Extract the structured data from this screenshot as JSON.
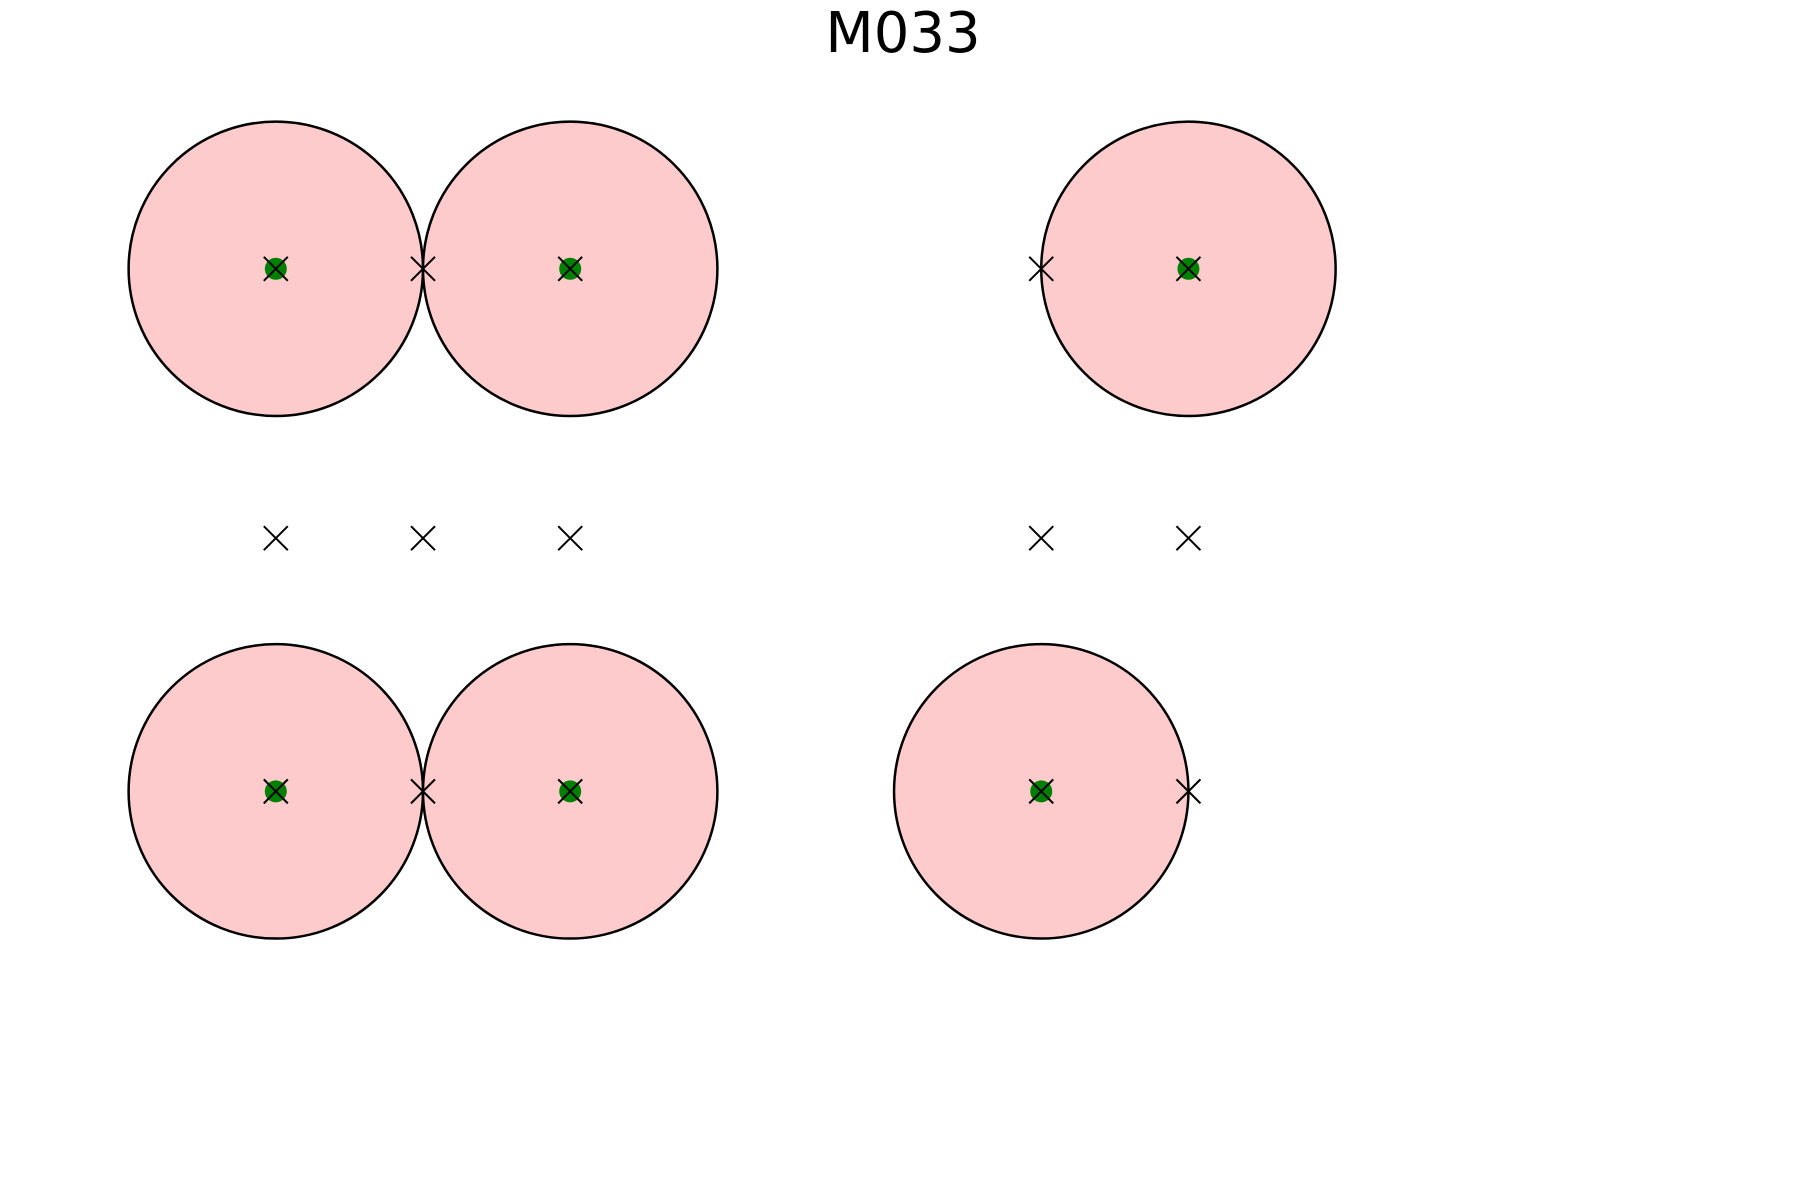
{
  "title": "M033",
  "colors": {
    "circle_fill": "#fdcbcb",
    "circle_stroke": "#000000",
    "dot": "#008000",
    "cross": "#000000"
  },
  "chart_data": {
    "type": "scatter",
    "title": "M033",
    "xlim": [
      -0.5,
      10.5
    ],
    "ylim": [
      -0.5,
      7.0
    ],
    "axes_visible": false,
    "grid": false,
    "circle_radius": 1.0,
    "circles": [
      {
        "x": 1,
        "y": 5.5
      },
      {
        "x": 3,
        "y": 5.5
      },
      {
        "x": 7.2,
        "y": 5.5
      },
      {
        "x": 1,
        "y": 1.95
      },
      {
        "x": 3,
        "y": 1.95
      },
      {
        "x": 6.2,
        "y": 1.95
      }
    ],
    "dots": [
      {
        "x": 1,
        "y": 5.5
      },
      {
        "x": 3,
        "y": 5.5
      },
      {
        "x": 7.2,
        "y": 5.5
      },
      {
        "x": 1,
        "y": 1.95
      },
      {
        "x": 3,
        "y": 1.95
      },
      {
        "x": 6.2,
        "y": 1.95
      }
    ],
    "crosses": [
      {
        "x": 1,
        "y": 5.5
      },
      {
        "x": 2,
        "y": 5.5
      },
      {
        "x": 3,
        "y": 5.5
      },
      {
        "x": 6.2,
        "y": 5.5
      },
      {
        "x": 7.2,
        "y": 5.5
      },
      {
        "x": 1,
        "y": 3.67
      },
      {
        "x": 2,
        "y": 3.67
      },
      {
        "x": 3,
        "y": 3.67
      },
      {
        "x": 6.2,
        "y": 3.67
      },
      {
        "x": 7.2,
        "y": 3.67
      },
      {
        "x": 1,
        "y": 1.95
      },
      {
        "x": 2,
        "y": 1.95
      },
      {
        "x": 3,
        "y": 1.95
      },
      {
        "x": 6.2,
        "y": 1.95
      },
      {
        "x": 7.2,
        "y": 1.95
      }
    ]
  }
}
